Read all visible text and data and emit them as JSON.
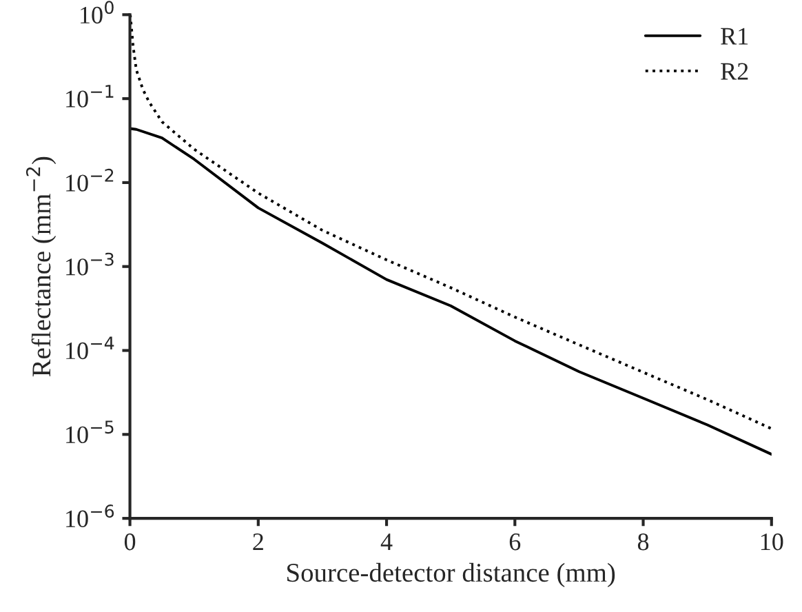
{
  "chart_data": {
    "type": "line",
    "xlabel": "Source-detector distance (mm)",
    "ylabel": "Reflectance (mm$^{−2}$)",
    "log": "y",
    "grid": false,
    "legend": "top right",
    "xlim": [
      0,
      10
    ],
    "xticks": [
      0,
      2,
      4,
      6,
      8,
      10
    ],
    "ylim": [
      1e-06,
      1
    ],
    "yticks": [
      {
        "value": 1,
        "label": "10$^{0}$"
      },
      {
        "value": 0.1,
        "label": "10$^{−1}$"
      },
      {
        "value": 0.01,
        "label": "10$^{−2}$"
      },
      {
        "value": 0.001,
        "label": "10$^{−3}$"
      },
      {
        "value": 0.0001,
        "label": "10$^{−4}$"
      },
      {
        "value": 1e-05,
        "label": "10$^{−5}$"
      },
      {
        "value": 1e-06,
        "label": "10$^{−6}$"
      }
    ],
    "series": [
      {
        "name": "R1",
        "color": "#000000",
        "line_style": "solid",
        "x": [
          0,
          0.1,
          0.5,
          1,
          2,
          3,
          4,
          5,
          6,
          7,
          8,
          9,
          10
        ],
        "values": [
          0.044,
          0.043,
          0.034,
          0.019,
          0.005,
          0.0019,
          0.0007,
          0.00034,
          0.00013,
          5.6e-05,
          2.7e-05,
          1.3e-05,
          5.8e-06
        ]
      },
      {
        "name": "R2",
        "color": "#000000",
        "line_style": "dotted",
        "x": [
          0.005,
          0.05,
          0.1,
          0.2,
          0.3,
          0.5,
          1,
          2,
          3,
          4,
          5,
          6,
          7,
          8,
          9,
          10
        ],
        "values": [
          1,
          0.42,
          0.22,
          0.13,
          0.091,
          0.053,
          0.025,
          0.0075,
          0.0027,
          0.0012,
          0.00056,
          0.00025,
          0.000117,
          5.5e-05,
          2.6e-05,
          1.17e-05
        ]
      }
    ]
  }
}
